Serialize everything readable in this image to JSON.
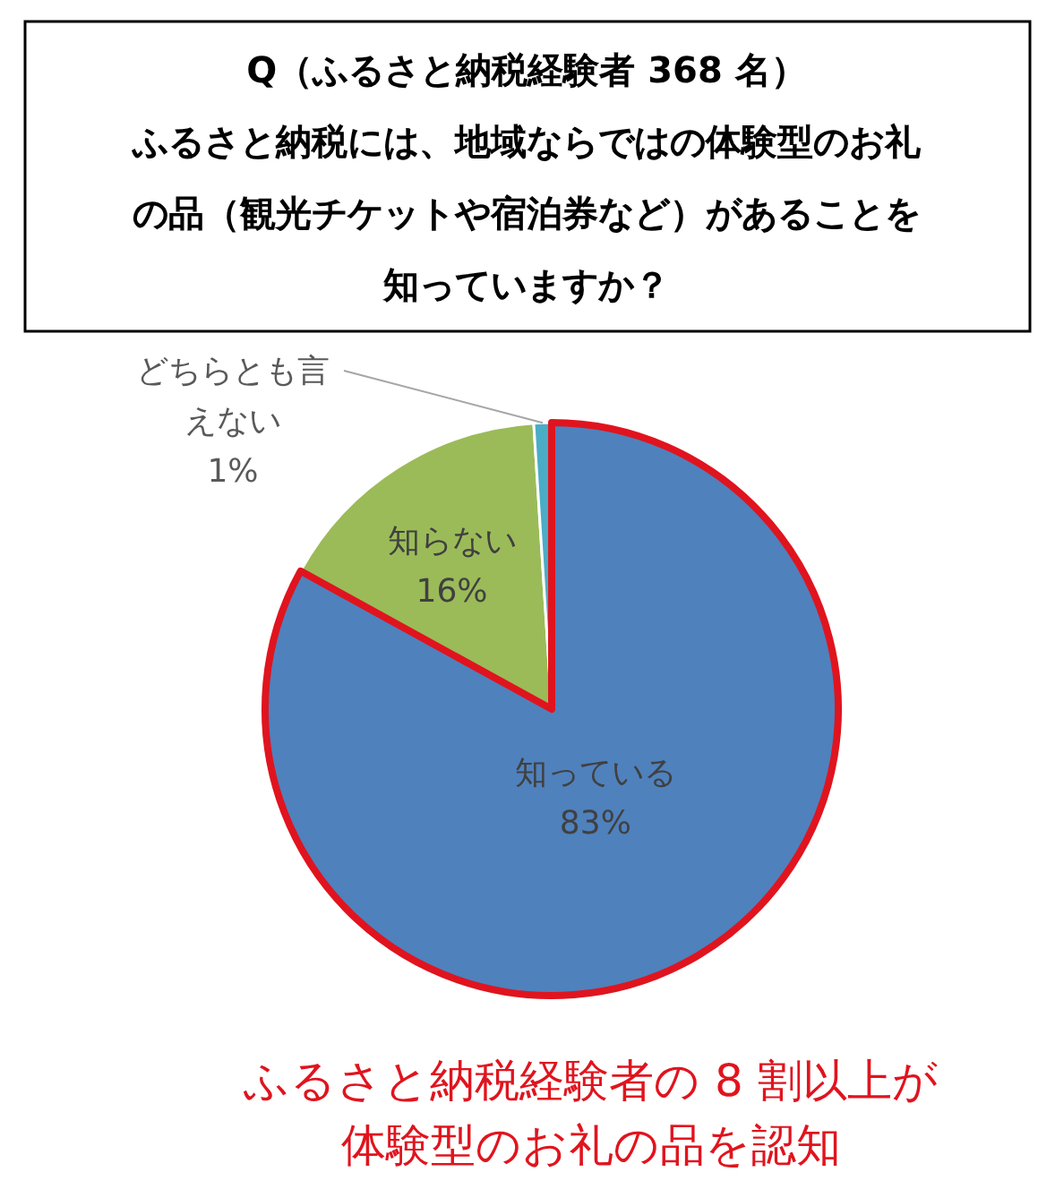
{
  "chart_data": {
    "type": "pie",
    "title": "Q（ふるさと納税経験者 368 名）",
    "subtitle": "ふるさと納税には、地域ならではの体験型のお礼の品（観光チケットや宿泊券など）があることを知っていますか？",
    "categories": [
      "知っている",
      "知らない",
      "どちらとも言えない"
    ],
    "values": [
      83,
      16,
      1
    ],
    "colors": [
      "#4f81bd",
      "#9bbb59",
      "#4bacc6"
    ],
    "value_labels": [
      "83%",
      "16%",
      "1%"
    ],
    "annotations": [
      "ふるさと納税経験者の 8 割以上が体験型のお礼の品を認知"
    ]
  }
}
